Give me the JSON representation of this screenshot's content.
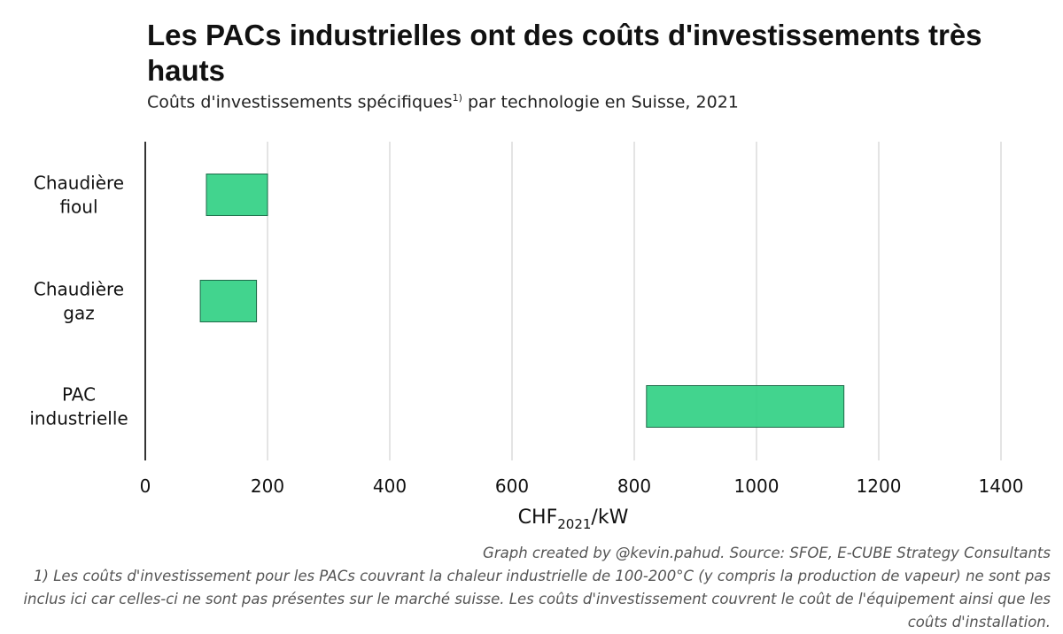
{
  "title": "Les PACs industrielles ont des coûts d'investissements très hauts",
  "subtitle_main": "Coûts d'investissements spécifiques",
  "subtitle_sup": "1)",
  "subtitle_rest": " par technologie en Suisse, 2021",
  "caption": {
    "credit": "Graph created by @kevin.pahud. Source: SFOE, E-CUBE Strategy Consultants",
    "footnote": "1) Les coûts d'investissement pour les PACs couvrant la chaleur industrielle de 100-200°C (y compris la production de vapeur) ne sont pas inclus ici car celles-ci ne sont pas présentes sur le marché suisse. Les coûts d'investissement couvrent le coût de l'équipement ainsi que les coûts d'installation."
  },
  "colors": {
    "bar_fill": "#2ecf82",
    "bar_stroke": "#1d6a48",
    "grid": "#d3d3d3",
    "axis": "#000000"
  },
  "chart_data": {
    "type": "bar",
    "orientation": "horizontal-range",
    "categories": [
      {
        "lines": [
          "Chaudière",
          "fioul"
        ]
      },
      {
        "lines": [
          "Chaudière",
          "gaz"
        ]
      },
      {
        "lines": [
          "PAC",
          "industrielle"
        ]
      }
    ],
    "ranges": [
      {
        "min": 100,
        "max": 200
      },
      {
        "min": 90,
        "max": 182
      },
      {
        "min": 820,
        "max": 1143
      }
    ],
    "xlabel_main": "CHF",
    "xlabel_sub": "2021",
    "xlabel_rest": "/kW",
    "xlim": [
      0,
      1400
    ],
    "xticks": [
      "0",
      "200",
      "400",
      "600",
      "800",
      "1000",
      "1200",
      "1400"
    ],
    "grid": "vertical",
    "legend": "none"
  }
}
